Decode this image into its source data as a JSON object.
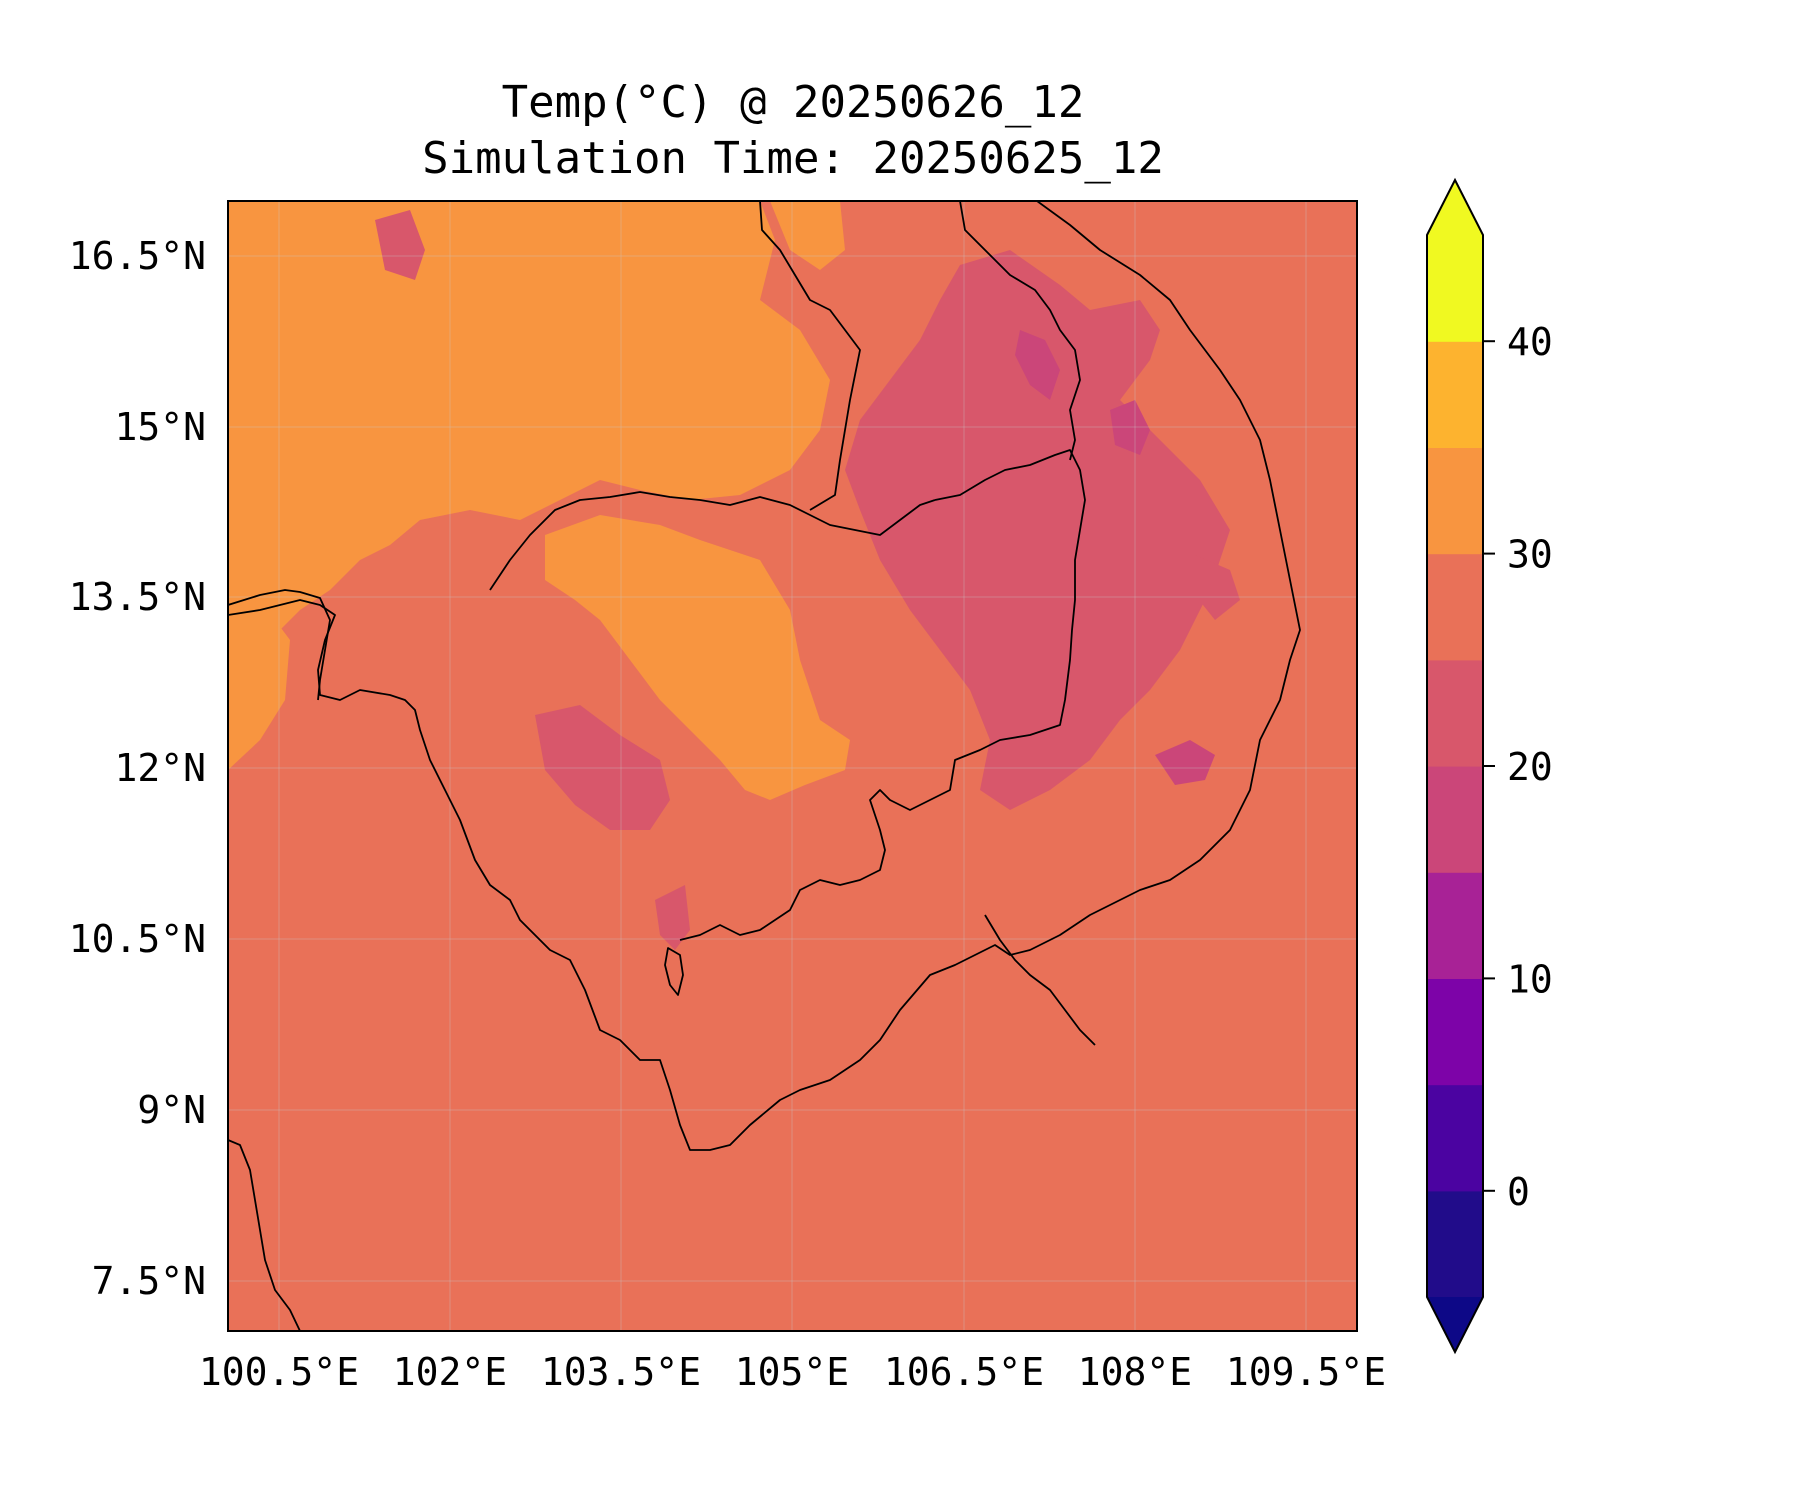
{
  "title": {
    "line1": "Temp(°C) @ 20250626_12",
    "line2": "Simulation Time: 20250625_12"
  },
  "chart_data": {
    "type": "heatmap",
    "xlabel": "",
    "ylabel": "",
    "x_ticks": [
      "100.5°E",
      "102°E",
      "103.5°E",
      "105°E",
      "106.5°E",
      "108°E",
      "109.5°E"
    ],
    "x_tick_values": [
      100.5,
      102,
      103.5,
      105,
      106.5,
      108,
      109.5
    ],
    "y_ticks": [
      "16.5°N",
      "15°N",
      "13.5°N",
      "12°N",
      "10.5°N",
      "9°N",
      "7.5°N"
    ],
    "y_tick_values": [
      16.5,
      15,
      13.5,
      12,
      10.5,
      9,
      7.5
    ],
    "xlim": [
      100.05,
      109.95
    ],
    "ylim": [
      7.05,
      16.95
    ],
    "grid": true,
    "colorbar": {
      "label": "",
      "ticks": [
        "0",
        "10",
        "20",
        "30",
        "40"
      ],
      "tick_values": [
        0,
        10,
        20,
        30,
        40
      ],
      "range": [
        -5,
        45
      ],
      "extend": "both",
      "levels": [
        -5,
        0,
        5,
        10,
        15,
        20,
        25,
        30,
        35,
        40,
        45
      ],
      "colors": [
        "#210c8a",
        "#4b03a1",
        "#7d03a8",
        "#a82296",
        "#cb4679",
        "#d8576b",
        "#e97158",
        "#f89540",
        "#fdb32f",
        "#f0f921"
      ],
      "under_color": "#0d0887",
      "over_color": "#f0f921"
    },
    "fields": [
      {
        "band": "25-30",
        "color": "#e97158",
        "region": "background (sea and most land)"
      },
      {
        "band": "30-35",
        "color": "#f89540",
        "region": "central Thailand / Tonle Sap plain"
      },
      {
        "band": "20-25",
        "color": "#d8576b",
        "region": "Annamite highlands and Cardamom mountains"
      },
      {
        "band": "15-20",
        "color": "#cb4679",
        "region": "highland cores"
      }
    ]
  }
}
